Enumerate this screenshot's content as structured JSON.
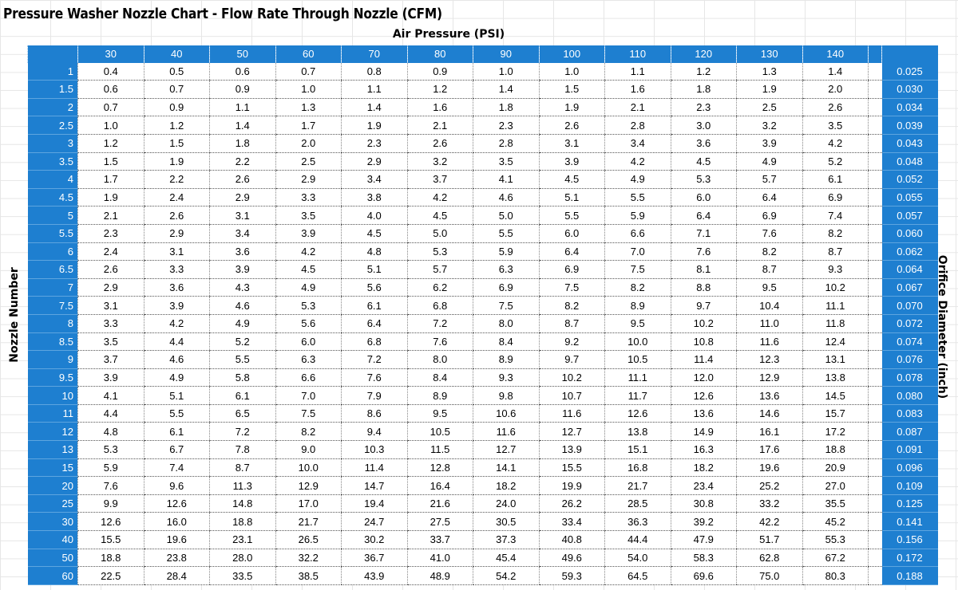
{
  "title": "Pressure Washer Nozzle Chart - Flow Rate Through Nozzle (CFM)",
  "column_axis_label": "Air Pressure (PSI)",
  "row_axis_label": "Nozzle Number",
  "right_axis_label": "Orifice Diameter (inch)",
  "colors": {
    "header_blue": "#1e7fd0",
    "text": "#000000",
    "header_text": "#ffffff"
  },
  "pressures": [
    "30",
    "40",
    "50",
    "60",
    "70",
    "80",
    "90",
    "100",
    "110",
    "120",
    "130",
    "140"
  ],
  "rows": [
    {
      "nozzle": "1",
      "values": [
        "0.4",
        "0.5",
        "0.6",
        "0.7",
        "0.8",
        "0.9",
        "1.0",
        "1.0",
        "1.1",
        "1.2",
        "1.3",
        "1.4"
      ],
      "orifice": "0.025"
    },
    {
      "nozzle": "1.5",
      "values": [
        "0.6",
        "0.7",
        "0.9",
        "1.0",
        "1.1",
        "1.2",
        "1.4",
        "1.5",
        "1.6",
        "1.8",
        "1.9",
        "2.0"
      ],
      "orifice": "0.030"
    },
    {
      "nozzle": "2",
      "values": [
        "0.7",
        "0.9",
        "1.1",
        "1.3",
        "1.4",
        "1.6",
        "1.8",
        "1.9",
        "2.1",
        "2.3",
        "2.5",
        "2.6"
      ],
      "orifice": "0.034"
    },
    {
      "nozzle": "2.5",
      "values": [
        "1.0",
        "1.2",
        "1.4",
        "1.7",
        "1.9",
        "2.1",
        "2.3",
        "2.6",
        "2.8",
        "3.0",
        "3.2",
        "3.5"
      ],
      "orifice": "0.039"
    },
    {
      "nozzle": "3",
      "values": [
        "1.2",
        "1.5",
        "1.8",
        "2.0",
        "2.3",
        "2.6",
        "2.8",
        "3.1",
        "3.4",
        "3.6",
        "3.9",
        "4.2"
      ],
      "orifice": "0.043"
    },
    {
      "nozzle": "3.5",
      "values": [
        "1.5",
        "1.9",
        "2.2",
        "2.5",
        "2.9",
        "3.2",
        "3.5",
        "3.9",
        "4.2",
        "4.5",
        "4.9",
        "5.2"
      ],
      "orifice": "0.048"
    },
    {
      "nozzle": "4",
      "values": [
        "1.7",
        "2.2",
        "2.6",
        "2.9",
        "3.4",
        "3.7",
        "4.1",
        "4.5",
        "4.9",
        "5.3",
        "5.7",
        "6.1"
      ],
      "orifice": "0.052"
    },
    {
      "nozzle": "4.5",
      "values": [
        "1.9",
        "2.4",
        "2.9",
        "3.3",
        "3.8",
        "4.2",
        "4.6",
        "5.1",
        "5.5",
        "6.0",
        "6.4",
        "6.9"
      ],
      "orifice": "0.055"
    },
    {
      "nozzle": "5",
      "values": [
        "2.1",
        "2.6",
        "3.1",
        "3.5",
        "4.0",
        "4.5",
        "5.0",
        "5.5",
        "5.9",
        "6.4",
        "6.9",
        "7.4"
      ],
      "orifice": "0.057"
    },
    {
      "nozzle": "5.5",
      "values": [
        "2.3",
        "2.9",
        "3.4",
        "3.9",
        "4.5",
        "5.0",
        "5.5",
        "6.0",
        "6.6",
        "7.1",
        "7.6",
        "8.2"
      ],
      "orifice": "0.060"
    },
    {
      "nozzle": "6",
      "values": [
        "2.4",
        "3.1",
        "3.6",
        "4.2",
        "4.8",
        "5.3",
        "5.9",
        "6.4",
        "7.0",
        "7.6",
        "8.2",
        "8.7"
      ],
      "orifice": "0.062"
    },
    {
      "nozzle": "6.5",
      "values": [
        "2.6",
        "3.3",
        "3.9",
        "4.5",
        "5.1",
        "5.7",
        "6.3",
        "6.9",
        "7.5",
        "8.1",
        "8.7",
        "9.3"
      ],
      "orifice": "0.064"
    },
    {
      "nozzle": "7",
      "values": [
        "2.9",
        "3.6",
        "4.3",
        "4.9",
        "5.6",
        "6.2",
        "6.9",
        "7.5",
        "8.2",
        "8.8",
        "9.5",
        "10.2"
      ],
      "orifice": "0.067"
    },
    {
      "nozzle": "7.5",
      "values": [
        "3.1",
        "3.9",
        "4.6",
        "5.3",
        "6.1",
        "6.8",
        "7.5",
        "8.2",
        "8.9",
        "9.7",
        "10.4",
        "11.1"
      ],
      "orifice": "0.070"
    },
    {
      "nozzle": "8",
      "values": [
        "3.3",
        "4.2",
        "4.9",
        "5.6",
        "6.4",
        "7.2",
        "8.0",
        "8.7",
        "9.5",
        "10.2",
        "11.0",
        "11.8"
      ],
      "orifice": "0.072"
    },
    {
      "nozzle": "8.5",
      "values": [
        "3.5",
        "4.4",
        "5.2",
        "6.0",
        "6.8",
        "7.6",
        "8.4",
        "9.2",
        "10.0",
        "10.8",
        "11.6",
        "12.4"
      ],
      "orifice": "0.074"
    },
    {
      "nozzle": "9",
      "values": [
        "3.7",
        "4.6",
        "5.5",
        "6.3",
        "7.2",
        "8.0",
        "8.9",
        "9.7",
        "10.5",
        "11.4",
        "12.3",
        "13.1"
      ],
      "orifice": "0.076"
    },
    {
      "nozzle": "9.5",
      "values": [
        "3.9",
        "4.9",
        "5.8",
        "6.6",
        "7.6",
        "8.4",
        "9.3",
        "10.2",
        "11.1",
        "12.0",
        "12.9",
        "13.8"
      ],
      "orifice": "0.078"
    },
    {
      "nozzle": "10",
      "values": [
        "4.1",
        "5.1",
        "6.1",
        "7.0",
        "7.9",
        "8.9",
        "9.8",
        "10.7",
        "11.7",
        "12.6",
        "13.6",
        "14.5"
      ],
      "orifice": "0.080"
    },
    {
      "nozzle": "11",
      "values": [
        "4.4",
        "5.5",
        "6.5",
        "7.5",
        "8.6",
        "9.5",
        "10.6",
        "11.6",
        "12.6",
        "13.6",
        "14.6",
        "15.7"
      ],
      "orifice": "0.083"
    },
    {
      "nozzle": "12",
      "values": [
        "4.8",
        "6.1",
        "7.2",
        "8.2",
        "9.4",
        "10.5",
        "11.6",
        "12.7",
        "13.8",
        "14.9",
        "16.1",
        "17.2"
      ],
      "orifice": "0.087"
    },
    {
      "nozzle": "13",
      "values": [
        "5.3",
        "6.7",
        "7.8",
        "9.0",
        "10.3",
        "11.5",
        "12.7",
        "13.9",
        "15.1",
        "16.3",
        "17.6",
        "18.8"
      ],
      "orifice": "0.091"
    },
    {
      "nozzle": "15",
      "values": [
        "5.9",
        "7.4",
        "8.7",
        "10.0",
        "11.4",
        "12.8",
        "14.1",
        "15.5",
        "16.8",
        "18.2",
        "19.6",
        "20.9"
      ],
      "orifice": "0.096"
    },
    {
      "nozzle": "20",
      "values": [
        "7.6",
        "9.6",
        "11.3",
        "12.9",
        "14.7",
        "16.4",
        "18.2",
        "19.9",
        "21.7",
        "23.4",
        "25.2",
        "27.0"
      ],
      "orifice": "0.109"
    },
    {
      "nozzle": "25",
      "values": [
        "9.9",
        "12.6",
        "14.8",
        "17.0",
        "19.4",
        "21.6",
        "24.0",
        "26.2",
        "28.5",
        "30.8",
        "33.2",
        "35.5"
      ],
      "orifice": "0.125"
    },
    {
      "nozzle": "30",
      "values": [
        "12.6",
        "16.0",
        "18.8",
        "21.7",
        "24.7",
        "27.5",
        "30.5",
        "33.4",
        "36.3",
        "39.2",
        "42.2",
        "45.2"
      ],
      "orifice": "0.141"
    },
    {
      "nozzle": "40",
      "values": [
        "15.5",
        "19.6",
        "23.1",
        "26.5",
        "30.2",
        "33.7",
        "37.3",
        "40.8",
        "44.4",
        "47.9",
        "51.7",
        "55.3"
      ],
      "orifice": "0.156"
    },
    {
      "nozzle": "50",
      "values": [
        "18.8",
        "23.8",
        "28.0",
        "32.2",
        "36.7",
        "41.0",
        "45.4",
        "49.6",
        "54.0",
        "58.3",
        "62.8",
        "67.2"
      ],
      "orifice": "0.172"
    },
    {
      "nozzle": "60",
      "values": [
        "22.5",
        "28.4",
        "33.5",
        "38.5",
        "43.9",
        "48.9",
        "54.2",
        "59.3",
        "64.5",
        "69.6",
        "75.0",
        "80.3"
      ],
      "orifice": "0.188"
    }
  ]
}
